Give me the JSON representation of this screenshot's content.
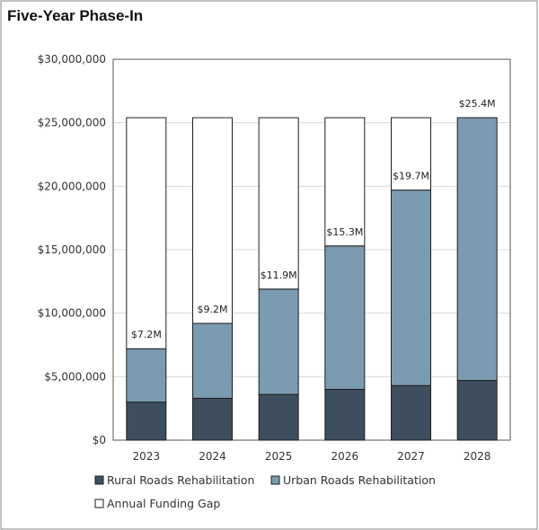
{
  "title": "Five-Year Phase-In",
  "colors": {
    "rural": "#3e4e5e",
    "urban": "#7b9bb0",
    "gap": "#ffffff",
    "bar_stroke": "#1f1f1f",
    "grid": "#d9d9d9",
    "frame": "#555555"
  },
  "chart_data": {
    "type": "bar",
    "stacked": true,
    "categories": [
      "2023",
      "2024",
      "2025",
      "2026",
      "2027",
      "2028"
    ],
    "series": [
      {
        "name": "Rural Roads Rehabilitation",
        "values": [
          3000000,
          3300000,
          3600000,
          4000000,
          4300000,
          4700000
        ]
      },
      {
        "name": "Urban Roads Rehabilitation",
        "values": [
          4200000,
          5900000,
          8300000,
          11300000,
          15400000,
          20700000
        ]
      },
      {
        "name": "Annual Funding Gap",
        "values": [
          18200000,
          16200000,
          13500000,
          10100000,
          5700000,
          0
        ]
      }
    ],
    "data_labels": [
      "$7.2M",
      "$9.2M",
      "$11.9M",
      "$15.3M",
      "$19.7M",
      "$25.4M"
    ],
    "yticks": [
      "$0",
      "$5,000,000",
      "$10,000,000",
      "$15,000,000",
      "$20,000,000",
      "$25,000,000",
      "$30,000,000"
    ],
    "ylim": [
      0,
      30000000
    ],
    "grid": true,
    "legend_position": "bottom"
  }
}
